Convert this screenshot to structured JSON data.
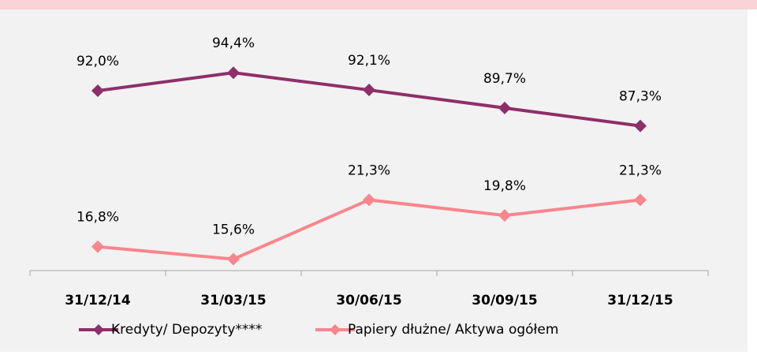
{
  "chart_data": {
    "type": "line",
    "categories": [
      "31/12/14",
      "31/03/15",
      "30/06/15",
      "30/09/15",
      "31/12/15"
    ],
    "ylim": [
      68,
      102
    ],
    "y2lim": [
      14.5,
      39
    ],
    "series": [
      {
        "name": "Kredyty/ Depozyty****",
        "color": "#8e2f69",
        "values": [
          92.0,
          94.4,
          92.1,
          89.7,
          87.3
        ],
        "value_labels": [
          "92,0%",
          "94,4%",
          "92,1%",
          "89,7%",
          "87,3%"
        ]
      },
      {
        "name": "Papiery dłużne/ Aktywa ogółem",
        "color": "#f8868c",
        "axis": "y2",
        "values": [
          16.8,
          15.6,
          21.3,
          19.8,
          21.3
        ],
        "value_labels": [
          "16,8%",
          "15,6%",
          "21,3%",
          "19,8%",
          "21,3%"
        ]
      }
    ]
  }
}
